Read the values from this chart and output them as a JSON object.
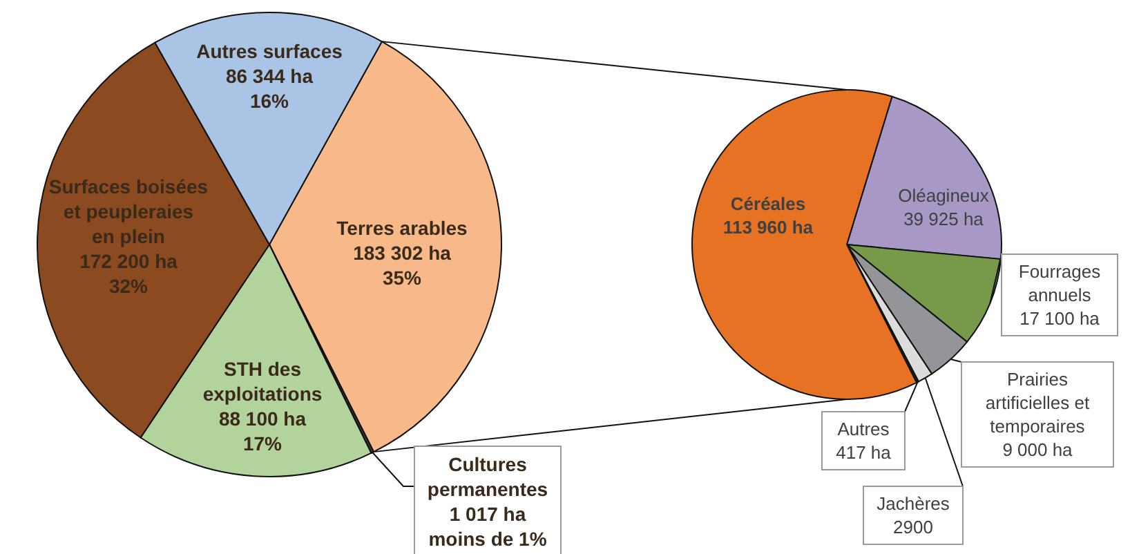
{
  "chart_data": [
    {
      "type": "pie",
      "categories": [
        "Terres arables",
        "Cultures permanentes",
        "STH des exploitations",
        "Surfaces boisées et peupleraies en plein",
        "Autres surfaces"
      ],
      "values": [
        183302,
        1017,
        88100,
        172200,
        86344
      ],
      "colors": [
        "#f8b98a",
        "#333333",
        "#b3d39c",
        "#8b4a20",
        "#a9c4e4"
      ],
      "value_labels": [
        "183 302 ha\n35%",
        "1 017 ha\nmoins de 1%",
        "88 100 ha\n17%",
        "172 200 ha\n32%",
        "86 344 ha\n16%"
      ]
    },
    {
      "type": "pie",
      "categories": [
        "Oléagineux",
        "Fourrages annuels",
        "Prairies artificielles et temporaires",
        "Jachères",
        "Autres",
        "Céréales"
      ],
      "values": [
        39925,
        17100,
        9000,
        2900,
        417,
        113960
      ],
      "colors": [
        "#a898c6",
        "#77994a",
        "#939598",
        "#dcdcdc",
        "#222222",
        "#e87224"
      ],
      "value_labels": [
        "39 925 ha",
        "17 100 ha",
        "9 000 ha",
        "2900",
        "417 ha",
        "113 960 ha"
      ]
    }
  ]
}
